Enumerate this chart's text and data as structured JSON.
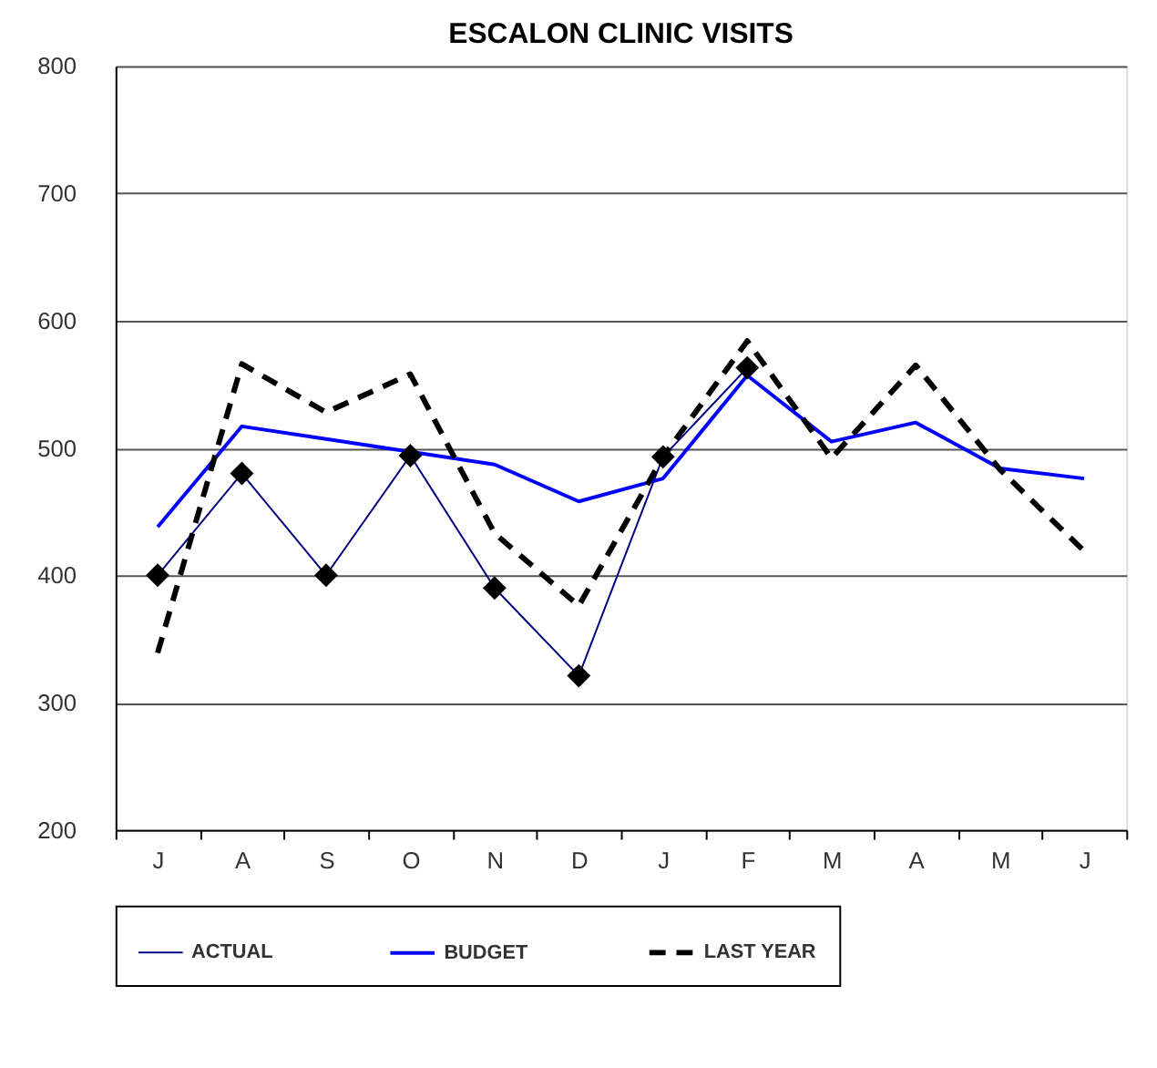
{
  "chart_data": {
    "type": "line",
    "title": "ESCALON CLINIC VISITS",
    "categories": [
      "J",
      "A",
      "S",
      "O",
      "N",
      "D",
      "J",
      "F",
      "M",
      "A",
      "M",
      "J"
    ],
    "series": [
      {
        "name": "ACTUAL",
        "color": "#000080",
        "marker": "diamond",
        "line_style": "solid",
        "values": [
          400,
          480,
          400,
          494,
          390,
          321,
          493,
          563,
          null,
          null,
          null,
          null
        ]
      },
      {
        "name": "BUDGET",
        "color": "#0000ff",
        "marker": "none",
        "line_style": "solid",
        "values": [
          438,
          517,
          507,
          497,
          487,
          458,
          476,
          557,
          505,
          520,
          484,
          476
        ]
      },
      {
        "name": "LAST YEAR",
        "color": "#000000",
        "marker": "none",
        "line_style": "dashed",
        "values": [
          339,
          566,
          528,
          558,
          433,
          376,
          493,
          584,
          492,
          565,
          483,
          419
        ]
      }
    ],
    "ylim": [
      200,
      800
    ],
    "yticks": [
      200,
      300,
      400,
      500,
      600,
      700,
      800
    ],
    "grid": "y",
    "legend": "bottom"
  }
}
